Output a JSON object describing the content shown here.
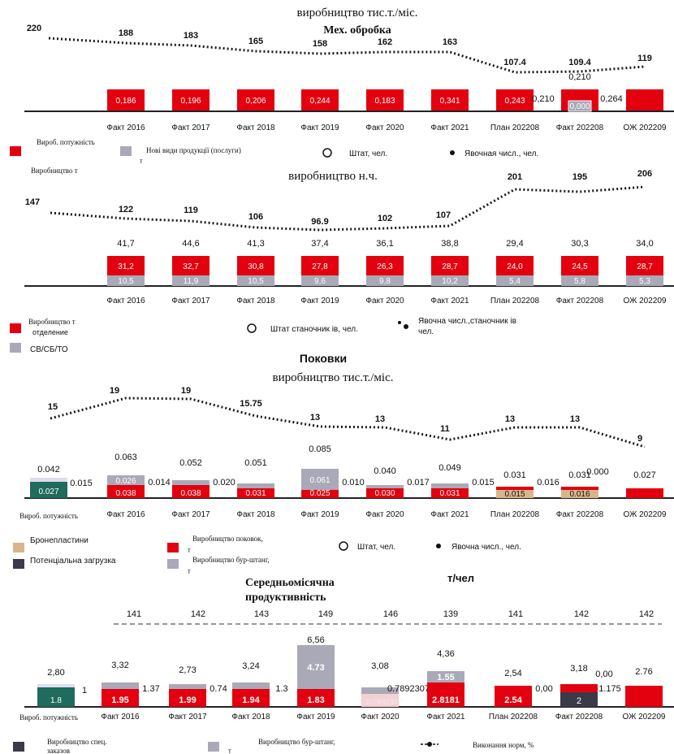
{
  "colors": {
    "red": "#e3000f",
    "gray": "#a9a9b8",
    "teal": "#1f6b5c",
    "tan": "#d9b58c",
    "dark": "#3a3a48",
    "line": "#1a1a1a",
    "dashed": "#999999"
  },
  "categories": [
    "Факт 2016",
    "Факт 2017",
    "Факт 2018",
    "Факт 2019",
    "Факт 2020",
    "Факт 2021",
    "План 202208",
    "Факт 202208",
    "ОЖ 202209"
  ],
  "chart_data": [
    {
      "type": "bar",
      "title": "виробництво тис.т./міс.",
      "subtitle": "Мех. обробка",
      "dotted_line": {
        "start": "220",
        "values": [
          "188",
          "183",
          "165",
          "158",
          "162",
          "163",
          "107.4",
          "109.4",
          "119"
        ]
      },
      "bar_labels": [
        "0,186",
        "0,196",
        "0,206",
        "0,244",
        "0,183",
        "0,341",
        "0,243",
        "0,000",
        ""
      ],
      "extra_labels": {
        "gap_left": "0,210",
        "top_202208": "0,210",
        "gap_right": "0,264"
      },
      "legend": {
        "capacity": "Вироб. потужність",
        "new_products": "Нові види продукції (послуги)",
        "new_products_unit": "т",
        "staff": "Штат, чел.",
        "headcount": "Явочная числ., чел.",
        "production": "Виробництво т"
      }
    },
    {
      "type": "bar",
      "title": "виробництво н.ч.",
      "dotted_line": {
        "start": "147",
        "values": [
          "122",
          "119",
          "106",
          "96.9",
          "102",
          "107",
          "201",
          "195",
          "206"
        ]
      },
      "totals": [
        "41,7",
        "44,6",
        "41,3",
        "37,4",
        "36,1",
        "38,8",
        "29,4",
        "30,3",
        "34,0"
      ],
      "red_values": [
        "31,2",
        "32,7",
        "30,8",
        "27,8",
        "26,3",
        "28,7",
        "24,0",
        "24,5",
        "28,7"
      ],
      "gray_values": [
        "10,5",
        "11,9",
        "10,5",
        "9,6",
        "9,8",
        "10,2",
        "5,4",
        "5,8",
        "5,3"
      ],
      "legend": {
        "production": "Виробництво т",
        "department": "отделение",
        "cv": "СВ/СБ/ТО",
        "staff": "Штат станочник ів, чел.",
        "headcount": "Явочна числ.,станочник ів",
        "headcount2": "чел."
      }
    },
    {
      "type": "bar",
      "heading": "Поковки",
      "title": "виробництво тис.т./міс.",
      "dotted_line": {
        "start": "15",
        "values": [
          "19",
          "19",
          "15.75",
          "13",
          "13",
          "11",
          "13",
          "13",
          "9"
        ]
      },
      "first_bar": {
        "total": "0.042",
        "value": "0.027",
        "gap": "0.015"
      },
      "totals": [
        "0.063",
        "0.052",
        "0.051",
        "0.085",
        "0.040",
        "0.049",
        "0.031",
        "0.031",
        "0.027"
      ],
      "red_values": [
        "0.038",
        "0.038",
        "0.031",
        "0.025",
        "0.030",
        "0.031",
        "",
        "",
        ""
      ],
      "gray_values": [
        "0.026",
        "",
        "",
        "0.061",
        "",
        "",
        "",
        "",
        ""
      ],
      "tan_values": [
        "",
        "",
        "",
        "",
        "",
        "",
        "0.015",
        "0.016",
        ""
      ],
      "gaps": [
        "0.014",
        "0.020",
        "",
        "0.010",
        "0.017",
        "0.015",
        "0.016",
        "",
        ""
      ],
      "extra": {
        "top_202208": "0.000"
      },
      "legend": {
        "capacity": "Вироб. потужність",
        "armor": "Бронепластини",
        "potential": "Потенціальна загрузка",
        "forgings": "Виробництво поковок,",
        "forgings_unit": "т",
        "drill": "Виробництво бур-штанг,",
        "drill_unit": "т",
        "staff": "Штат, чел.",
        "headcount": "Явочна числ., чел."
      }
    },
    {
      "type": "bar",
      "title": "Середньомісячна продуктивність",
      "unit": "т/чел",
      "dashed_line": {
        "values": [
          "141",
          "142",
          "143",
          "149",
          "146",
          "139",
          "141",
          "142",
          "142"
        ]
      },
      "first_bar": {
        "total": "2,80",
        "value": "1.8",
        "gap": "1"
      },
      "totals": [
        "3,32",
        "2,73",
        "3,24",
        "6,56",
        "3,08",
        "4,36",
        "2,54",
        "3,18",
        "2.76"
      ],
      "red_values": [
        "1.95",
        "1.99",
        "1.94",
        "1.83",
        "",
        "2.8181",
        "2.54",
        "",
        ""
      ],
      "gray_values": [
        "",
        "",
        "",
        "4.73",
        "",
        "1.55",
        "",
        "",
        ""
      ],
      "dark_values": [
        "",
        "",
        "",
        "",
        "",
        "",
        "",
        "2",
        ""
      ],
      "gaps": [
        "1.37",
        "0.74",
        "1.3",
        "",
        "0.78923076",
        "",
        "0,00",
        "1.175",
        ""
      ],
      "extra": {
        "faded_2020": "1.307692307",
        "top_202208": "0,00"
      },
      "legend": {
        "capacity": "Вироб. потужність",
        "special": "Виробництво спец.",
        "special2": "заказов",
        "drill": "Виробництво бур-штанг,",
        "drill_unit": "т",
        "norm": "Виконання норм, %"
      }
    }
  ]
}
